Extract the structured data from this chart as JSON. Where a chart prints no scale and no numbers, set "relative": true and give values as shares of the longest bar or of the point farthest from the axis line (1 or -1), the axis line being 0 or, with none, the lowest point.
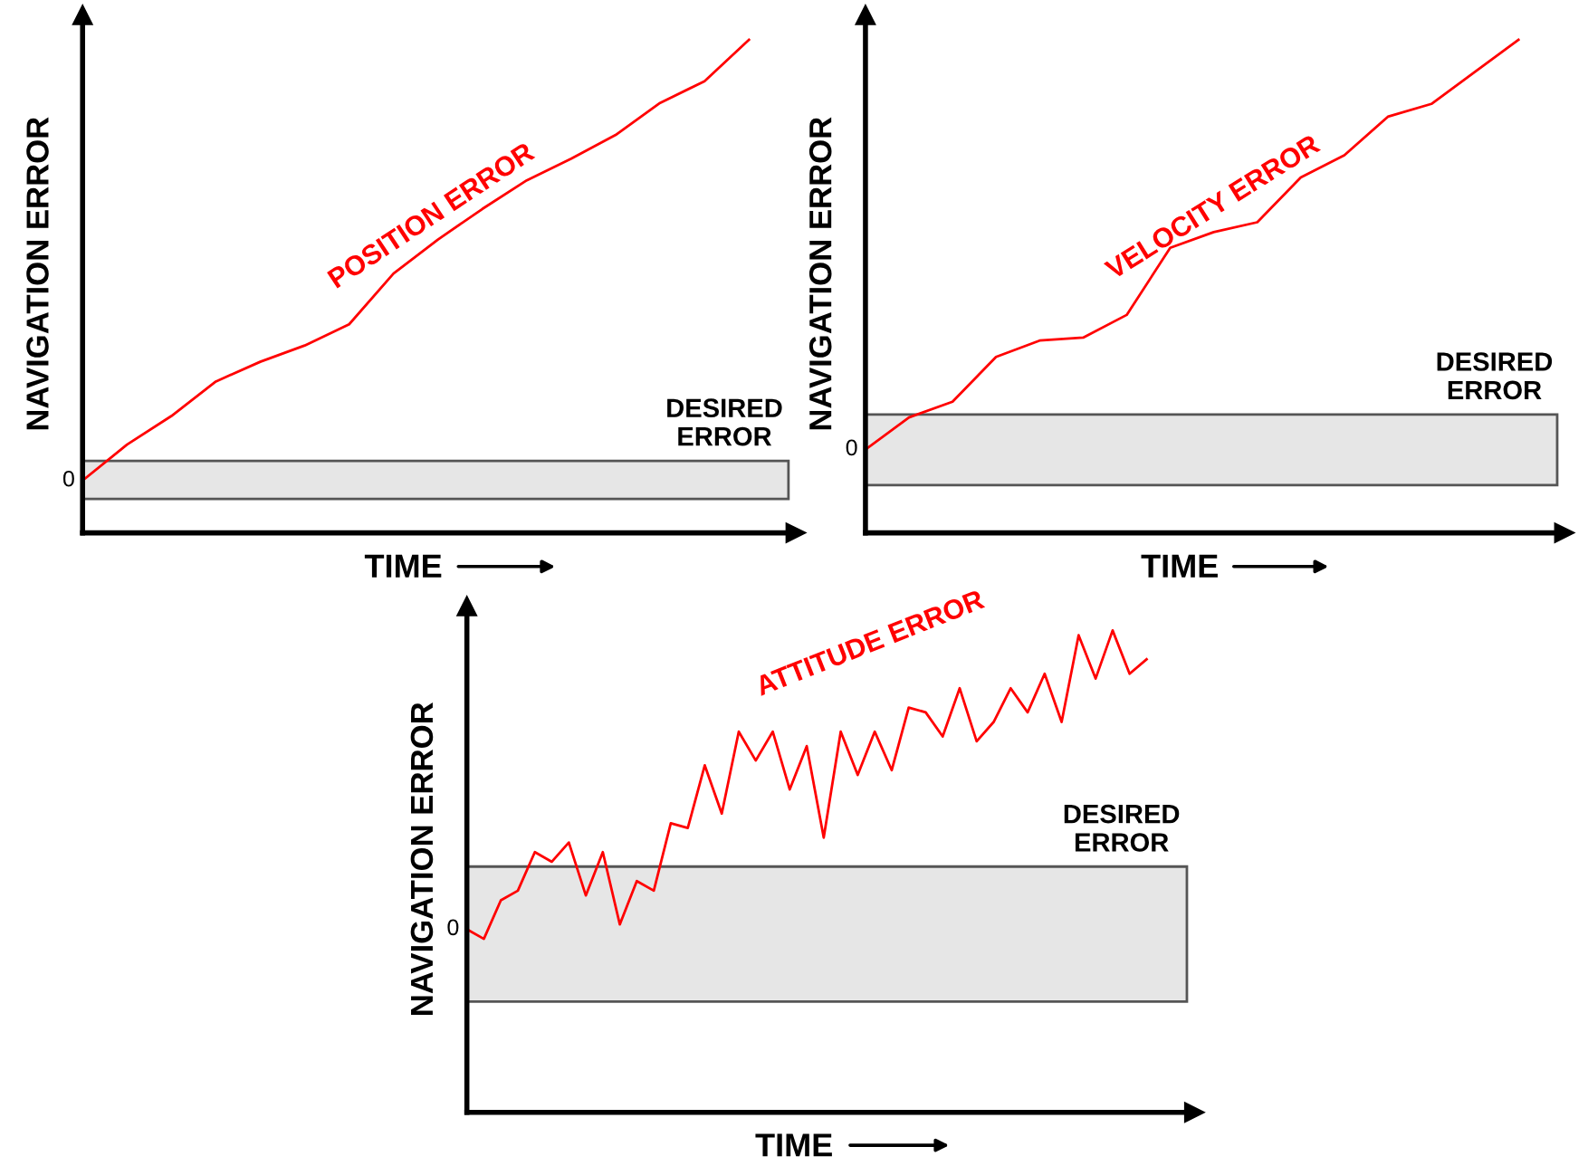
{
  "chart_data": [
    {
      "type": "line",
      "relative": true,
      "xlabel": "TIME",
      "ylabel": "NAVIGATION ERROR",
      "categories": [
        null,
        null,
        null,
        null,
        null,
        null,
        null,
        null,
        null,
        null,
        null,
        null,
        null,
        null,
        null,
        null
      ],
      "series": [
        {
          "name": "POSITION ERROR",
          "color": "#ff0000",
          "values": [
            0.106,
            0.179,
            0.237,
            0.307,
            0.347,
            0.38,
            0.423,
            0.526,
            0.595,
            0.657,
            0.715,
            0.759,
            0.807,
            0.872,
            0.916,
            1.0
          ]
        }
      ],
      "bands": [
        {
          "axis": "y",
          "from": 0.069,
          "to": 0.146,
          "label": "DESIRED ERROR",
          "color": "#e6e6e6"
        }
      ],
      "annotations": [
        "0"
      ],
      "grid": false
    },
    {
      "type": "line",
      "relative": true,
      "xlabel": "TIME",
      "ylabel": "NAVIGATION ERROR",
      "categories": [
        null,
        null,
        null,
        null,
        null,
        null,
        null,
        null,
        null,
        null,
        null,
        null,
        null,
        null,
        null,
        null
      ],
      "series": [
        {
          "name": "VELOCITY ERROR",
          "color": "#ff0000",
          "values": [
            0.169,
            0.234,
            0.266,
            0.357,
            0.39,
            0.396,
            0.442,
            0.578,
            0.61,
            0.63,
            0.721,
            0.766,
            0.844,
            0.87,
            0.935,
            1.0
          ]
        }
      ],
      "bands": [
        {
          "axis": "y",
          "from": 0.097,
          "to": 0.24,
          "label": "DESIRED ERROR",
          "color": "#e6e6e6"
        }
      ],
      "annotations": [
        "0"
      ],
      "grid": false
    },
    {
      "type": "line",
      "relative": true,
      "xlabel": "TIME",
      "ylabel": "NAVIGATION ERROR",
      "categories": [
        null,
        null,
        null,
        null,
        null,
        null,
        null,
        null,
        null,
        null,
        null,
        null,
        null,
        null,
        null,
        null,
        null,
        null,
        null,
        null,
        null,
        null,
        null,
        null,
        null,
        null,
        null,
        null,
        null,
        null,
        null,
        null,
        null,
        null,
        null,
        null,
        null,
        null,
        null,
        null,
        null
      ],
      "series": [
        {
          "name": "ATTITUDE ERROR",
          "color": "#ff0000",
          "values": [
            0.38,
            0.36,
            0.44,
            0.46,
            0.54,
            0.52,
            0.56,
            0.45,
            0.54,
            0.39,
            0.48,
            0.46,
            0.6,
            0.59,
            0.72,
            0.62,
            0.79,
            0.73,
            0.79,
            0.67,
            0.76,
            0.57,
            0.79,
            0.7,
            0.79,
            0.71,
            0.84,
            0.83,
            0.78,
            0.88,
            0.77,
            0.81,
            0.88,
            0.83,
            0.91,
            0.81,
            0.99,
            0.9,
            1.0,
            0.91,
            0.94
          ]
        }
      ],
      "bands": [
        {
          "axis": "y",
          "from": 0.23,
          "to": 0.51,
          "label": "DESIRED ERROR",
          "color": "#e6e6e6"
        }
      ],
      "annotations": [
        "0"
      ],
      "grid": false
    }
  ]
}
